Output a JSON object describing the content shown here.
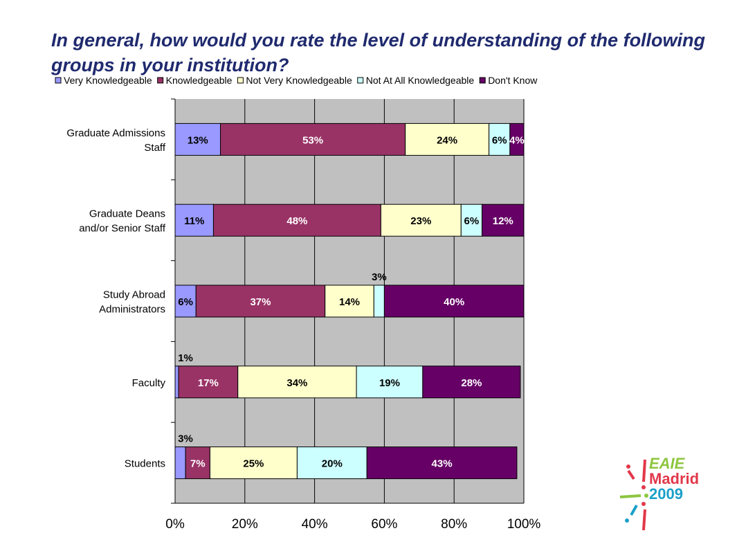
{
  "title": "In general, how would you rate the level of understanding of the following groups in your institution?",
  "logo": {
    "line1": "EAIE",
    "line2": "Madrid",
    "line3": "2009"
  },
  "chart_data": {
    "type": "bar",
    "orientation": "horizontal",
    "stacked": true,
    "categories": [
      "Graduate Admissions Staff",
      "Graduate Deans and/or Senior Staff",
      "Study Abroad Administrators",
      "Faculty",
      "Students"
    ],
    "category_labels": [
      [
        "Graduate Admissions",
        "Staff"
      ],
      [
        "Graduate Deans",
        "and/or Senior Staff"
      ],
      [
        "Study Abroad",
        "Administrators"
      ],
      [
        "Faculty"
      ],
      [
        "Students"
      ]
    ],
    "series": [
      {
        "name": "Very Knowledgeable",
        "color": "#9999ff",
        "values": [
          13,
          11,
          6,
          1,
          3
        ],
        "labels": [
          "13%",
          "11%",
          "6%",
          "1%",
          "3%"
        ]
      },
      {
        "name": "Knowledgeable",
        "color": "#993366",
        "values": [
          53,
          48,
          37,
          17,
          7
        ],
        "labels": [
          "53%",
          "48%",
          "37%",
          "17%",
          "7%"
        ]
      },
      {
        "name": "Not Very Knowledgeable",
        "color": "#ffffcc",
        "values": [
          24,
          23,
          14,
          34,
          25
        ],
        "labels": [
          "24%",
          "23%",
          "14%",
          "34%",
          "25%"
        ]
      },
      {
        "name": "Not At All Knowledgeable",
        "color": "#ccffff",
        "values": [
          6,
          6,
          3,
          19,
          20
        ],
        "labels": [
          "6%",
          "6%",
          "3%",
          "19%",
          "20%"
        ]
      },
      {
        "name": "Don't Know",
        "color": "#660066",
        "values": [
          4,
          12,
          40,
          28,
          43
        ],
        "labels": [
          "4%",
          "12%",
          "40%",
          "28%",
          "43%"
        ]
      }
    ],
    "xlim": [
      0,
      100
    ],
    "x_ticks": [
      "0%",
      "20%",
      "40%",
      "60%",
      "80%",
      "100%"
    ],
    "legend_position": "top",
    "grid": true,
    "plot_background": "#c0c0c0"
  }
}
